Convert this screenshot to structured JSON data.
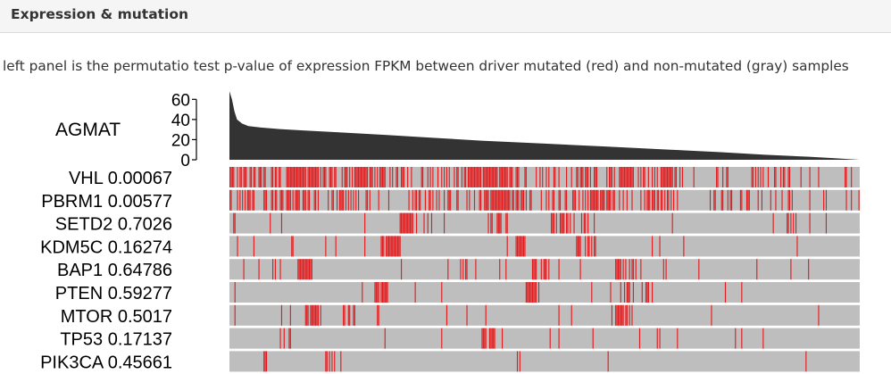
{
  "panel": {
    "title": "Expression & mutation",
    "caption": "left panel is the permutatio test p-value of expression FPKM between driver mutated (red) and non-mutated (gray) samples"
  },
  "chart_data": {
    "type": "bar",
    "gene_label": "AGMAT",
    "y_ticks": [
      0,
      20,
      40,
      60
    ],
    "ylim": [
      0,
      70
    ],
    "sample_count": 500,
    "expression_curve": [
      [
        0,
        68
      ],
      [
        0.004,
        60
      ],
      [
        0.008,
        48
      ],
      [
        0.012,
        40
      ],
      [
        0.02,
        36
      ],
      [
        0.03,
        33.5
      ],
      [
        0.05,
        32
      ],
      [
        0.08,
        30.5
      ],
      [
        0.12,
        29
      ],
      [
        0.18,
        27
      ],
      [
        0.25,
        24.5
      ],
      [
        0.32,
        22
      ],
      [
        0.4,
        19
      ],
      [
        0.5,
        16
      ],
      [
        0.6,
        13
      ],
      [
        0.7,
        10
      ],
      [
        0.78,
        7.5
      ],
      [
        0.85,
        5
      ],
      [
        0.92,
        3
      ],
      [
        0.96,
        1.5
      ],
      [
        1.0,
        0
      ]
    ],
    "colors": {
      "expression": "#333333",
      "mutated": "#e41a1c",
      "nonmutated": "#bebebe"
    },
    "mutations": [
      {
        "gene": "VHL",
        "pvalue": "0.00067",
        "density": 0.5,
        "seed": 11,
        "clusters": [
          [
            0.09,
            0.14,
            0.8
          ],
          [
            0.19,
            0.23,
            0.75
          ],
          [
            0.38,
            0.46,
            0.85
          ],
          [
            0.55,
            0.58,
            0.8
          ],
          [
            0.61,
            0.64,
            0.8
          ],
          [
            0.67,
            0.71,
            0.7
          ]
        ]
      },
      {
        "gene": "PBRM1",
        "pvalue": "0.00577",
        "density": 0.4,
        "seed": 23,
        "clusters": [
          [
            0.07,
            0.11,
            0.6
          ],
          [
            0.17,
            0.2,
            0.65
          ],
          [
            0.41,
            0.47,
            0.7
          ],
          [
            0.56,
            0.61,
            0.7
          ],
          [
            0.67,
            0.71,
            0.6
          ]
        ]
      },
      {
        "gene": "SETD2",
        "pvalue": "0.7026",
        "density": 0.06,
        "seed": 37,
        "clusters": [
          [
            0.27,
            0.29,
            0.8
          ],
          [
            0.41,
            0.44,
            0.6
          ],
          [
            0.51,
            0.58,
            0.5
          ],
          [
            0.88,
            0.9,
            0.5
          ]
        ]
      },
      {
        "gene": "KDM5C",
        "pvalue": "0.16274",
        "density": 0.05,
        "seed": 41,
        "clusters": [
          [
            0.24,
            0.27,
            0.8
          ],
          [
            0.44,
            0.47,
            0.6
          ],
          [
            0.55,
            0.58,
            0.5
          ]
        ]
      },
      {
        "gene": "BAP1",
        "pvalue": "0.64786",
        "density": 0.07,
        "seed": 53,
        "clusters": [
          [
            0.11,
            0.13,
            0.8
          ],
          [
            0.37,
            0.39,
            0.6
          ],
          [
            0.48,
            0.51,
            0.6
          ],
          [
            0.61,
            0.64,
            0.5
          ]
        ]
      },
      {
        "gene": "PTEN",
        "pvalue": "0.59277",
        "density": 0.04,
        "seed": 61,
        "clusters": [
          [
            0.23,
            0.25,
            0.8
          ],
          [
            0.47,
            0.49,
            0.7
          ],
          [
            0.62,
            0.67,
            0.5
          ]
        ]
      },
      {
        "gene": "MTOR",
        "pvalue": "0.5017",
        "density": 0.05,
        "seed": 73,
        "clusters": [
          [
            0.12,
            0.14,
            0.7
          ],
          [
            0.18,
            0.2,
            0.6
          ],
          [
            0.61,
            0.64,
            0.7
          ]
        ]
      },
      {
        "gene": "TP53",
        "pvalue": "0.17137",
        "density": 0.03,
        "seed": 83,
        "clusters": [
          [
            0.4,
            0.42,
            0.6
          ]
        ]
      },
      {
        "gene": "PIK3CA",
        "pvalue": "0.45661",
        "density": 0.03,
        "seed": 97,
        "clusters": [
          [
            0.15,
            0.17,
            0.6
          ]
        ]
      }
    ]
  }
}
